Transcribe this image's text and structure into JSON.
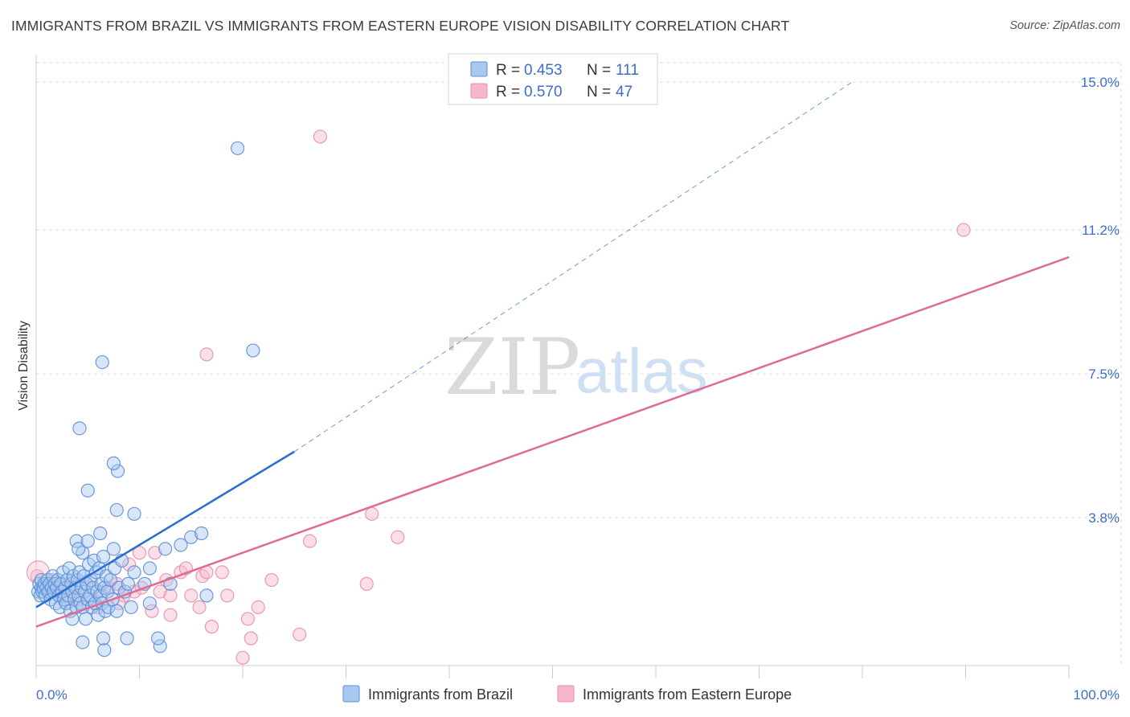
{
  "header": {
    "title": "IMMIGRANTS FROM BRAZIL VS IMMIGRANTS FROM EASTERN EUROPE VISION DISABILITY CORRELATION CHART",
    "source": "Source: ZipAtlas.com"
  },
  "watermark": {
    "zip": "ZIP",
    "atlas": "atlas"
  },
  "legend": {
    "r_label": "R =",
    "n_label": "N =",
    "rows": [
      {
        "r": "0.453",
        "n": "111",
        "color": "#a9c8f0"
      },
      {
        "r": "0.570",
        "n": "47",
        "color": "#f5b8cb"
      }
    ]
  },
  "colors": {
    "blue_stroke": "#5b8fd6",
    "blue_fill": "#a9c8f0",
    "blue_line": "#2a6fd0",
    "pink_stroke": "#e88fab",
    "pink_fill": "#f5b8cb",
    "pink_line": "#e06a93",
    "grid": "#dddddd",
    "tick_text": "#3a6fc9"
  },
  "chart_data": {
    "type": "scatter",
    "title": "IMMIGRANTS FROM BRAZIL VS IMMIGRANTS FROM EASTERN EUROPE VISION DISABILITY CORRELATION CHART",
    "xlabel": "",
    "ylabel": "Vision Disability",
    "xlim": [
      0,
      100
    ],
    "ylim": [
      0,
      15.5
    ],
    "x_tick_labels": [
      "0.0%",
      "100.0%"
    ],
    "y_ticks": [
      {
        "value": 3.8,
        "label": "3.8%"
      },
      {
        "value": 7.5,
        "label": "7.5%"
      },
      {
        "value": 11.2,
        "label": "11.2%"
      },
      {
        "value": 15.0,
        "label": "15.0%"
      }
    ],
    "grid": true,
    "legend_position": "top-center",
    "series": [
      {
        "name": "Immigrants from Brazil",
        "R": 0.453,
        "N": 111,
        "trend": {
          "x0": 0,
          "y0": 1.5,
          "x1": 25,
          "y1": 5.5,
          "dashed_to_x": 79,
          "dashed_to_y": 15.0
        },
        "points": [
          [
            0.2,
            1.9
          ],
          [
            0.3,
            2.1
          ],
          [
            0.4,
            1.8
          ],
          [
            0.5,
            2.0
          ],
          [
            0.5,
            2.2
          ],
          [
            0.6,
            1.9
          ],
          [
            0.7,
            2.0
          ],
          [
            0.8,
            2.1
          ],
          [
            0.9,
            1.8
          ],
          [
            1.0,
            2.0
          ],
          [
            1.1,
            2.2
          ],
          [
            1.2,
            1.9
          ],
          [
            1.3,
            2.1
          ],
          [
            1.4,
            1.7
          ],
          [
            1.5,
            2.0
          ],
          [
            1.6,
            2.3
          ],
          [
            1.7,
            1.9
          ],
          [
            1.8,
            2.1
          ],
          [
            1.9,
            1.6
          ],
          [
            2.0,
            2.0
          ],
          [
            2.1,
            2.2
          ],
          [
            2.2,
            1.8
          ],
          [
            2.3,
            1.5
          ],
          [
            2.4,
            2.1
          ],
          [
            2.5,
            1.9
          ],
          [
            2.6,
            2.4
          ],
          [
            2.7,
            1.7
          ],
          [
            2.8,
            2.0
          ],
          [
            2.9,
            1.6
          ],
          [
            3.0,
            2.2
          ],
          [
            3.1,
            1.8
          ],
          [
            3.2,
            2.5
          ],
          [
            3.3,
            1.4
          ],
          [
            3.4,
            2.1
          ],
          [
            3.5,
            1.9
          ],
          [
            3.6,
            2.3
          ],
          [
            3.7,
            1.7
          ],
          [
            3.8,
            2.0
          ],
          [
            3.9,
            1.5
          ],
          [
            4.0,
            2.2
          ],
          [
            4.1,
            1.8
          ],
          [
            4.2,
            2.4
          ],
          [
            4.3,
            1.6
          ],
          [
            4.4,
            2.0
          ],
          [
            4.5,
            1.5
          ],
          [
            4.6,
            2.3
          ],
          [
            4.7,
            1.9
          ],
          [
            4.8,
            1.2
          ],
          [
            4.9,
            2.1
          ],
          [
            5.0,
            1.7
          ],
          [
            5.1,
            2.6
          ],
          [
            5.2,
            1.8
          ],
          [
            5.3,
            2.2
          ],
          [
            5.4,
            1.5
          ],
          [
            5.5,
            2.0
          ],
          [
            5.6,
            2.7
          ],
          [
            5.7,
            1.6
          ],
          [
            5.8,
            2.4
          ],
          [
            5.9,
            1.9
          ],
          [
            6.0,
            1.3
          ],
          [
            6.1,
            2.5
          ],
          [
            6.2,
            1.8
          ],
          [
            6.3,
            2.1
          ],
          [
            6.4,
            1.6
          ],
          [
            6.5,
            2.8
          ],
          [
            6.6,
            2.0
          ],
          [
            6.7,
            1.4
          ],
          [
            6.8,
            2.3
          ],
          [
            6.9,
            1.9
          ],
          [
            7.0,
            1.5
          ],
          [
            7.2,
            2.2
          ],
          [
            7.4,
            1.7
          ],
          [
            7.6,
            2.5
          ],
          [
            7.8,
            1.4
          ],
          [
            8.0,
            2.0
          ],
          [
            8.3,
            2.7
          ],
          [
            8.6,
            1.9
          ],
          [
            8.9,
            2.1
          ],
          [
            9.2,
            1.5
          ],
          [
            9.5,
            2.4
          ],
          [
            4.5,
            2.9
          ],
          [
            3.9,
            3.2
          ],
          [
            4.1,
            3.0
          ],
          [
            5.0,
            3.2
          ],
          [
            6.2,
            3.4
          ],
          [
            7.5,
            3.0
          ],
          [
            9.5,
            3.9
          ],
          [
            12.5,
            3.0
          ],
          [
            14.0,
            3.1
          ],
          [
            15.0,
            3.3
          ],
          [
            16.0,
            3.4
          ],
          [
            5.0,
            4.5
          ],
          [
            7.8,
            4.0
          ],
          [
            7.9,
            5.0
          ],
          [
            7.5,
            5.2
          ],
          [
            4.2,
            6.1
          ],
          [
            6.4,
            7.8
          ],
          [
            19.5,
            13.3
          ],
          [
            21.0,
            8.1
          ],
          [
            11.0,
            2.5
          ],
          [
            13.0,
            2.1
          ],
          [
            16.5,
            1.8
          ],
          [
            10.5,
            2.1
          ],
          [
            11.0,
            1.6
          ],
          [
            12.0,
            0.5
          ],
          [
            6.6,
            0.4
          ],
          [
            4.5,
            0.6
          ],
          [
            6.5,
            0.7
          ],
          [
            8.8,
            0.7
          ],
          [
            11.8,
            0.7
          ],
          [
            3.5,
            1.2
          ]
        ]
      },
      {
        "name": "Immigrants from Eastern Europe",
        "R": 0.57,
        "N": 47,
        "trend": {
          "x0": 0,
          "y0": 1.0,
          "x1": 100,
          "y1": 10.5
        },
        "points": [
          [
            0.1,
            2.3
          ],
          [
            1.0,
            2.0
          ],
          [
            1.5,
            2.2
          ],
          [
            2.2,
            1.8
          ],
          [
            3.2,
            2.0
          ],
          [
            4.8,
            2.1
          ],
          [
            5.5,
            1.7
          ],
          [
            6.2,
            1.9
          ],
          [
            7.0,
            2.0
          ],
          [
            7.8,
            2.1
          ],
          [
            8.5,
            1.8
          ],
          [
            9.5,
            1.9
          ],
          [
            10.2,
            2.0
          ],
          [
            11.2,
            1.4
          ],
          [
            12.0,
            1.9
          ],
          [
            12.6,
            2.2
          ],
          [
            13.0,
            1.8
          ],
          [
            14.0,
            2.4
          ],
          [
            15.0,
            1.8
          ],
          [
            15.8,
            1.5
          ],
          [
            16.1,
            2.3
          ],
          [
            16.5,
            2.4
          ],
          [
            18.5,
            1.8
          ],
          [
            20.5,
            1.2
          ],
          [
            21.5,
            1.5
          ],
          [
            22.8,
            2.2
          ],
          [
            25.5,
            0.8
          ],
          [
            26.5,
            3.2
          ],
          [
            32.0,
            2.1
          ],
          [
            32.5,
            3.9
          ],
          [
            35.0,
            3.3
          ],
          [
            17.0,
            1.0
          ],
          [
            20.8,
            0.7
          ],
          [
            20.0,
            0.2
          ],
          [
            13.0,
            1.3
          ],
          [
            11.5,
            2.9
          ],
          [
            10.0,
            2.9
          ],
          [
            8.0,
            1.6
          ],
          [
            6.0,
            1.5
          ],
          [
            4.2,
            1.7
          ],
          [
            14.5,
            2.5
          ],
          [
            18.0,
            2.4
          ],
          [
            16.5,
            8.0
          ],
          [
            27.5,
            13.6
          ],
          [
            89.8,
            11.2
          ],
          [
            3.0,
            1.6
          ],
          [
            9.0,
            2.6
          ]
        ]
      }
    ]
  },
  "bottom_legend": [
    {
      "label": "Immigrants from Brazil",
      "color": "#a9c8f0"
    },
    {
      "label": "Immigrants from Eastern Europe",
      "color": "#f5b8cb"
    }
  ]
}
